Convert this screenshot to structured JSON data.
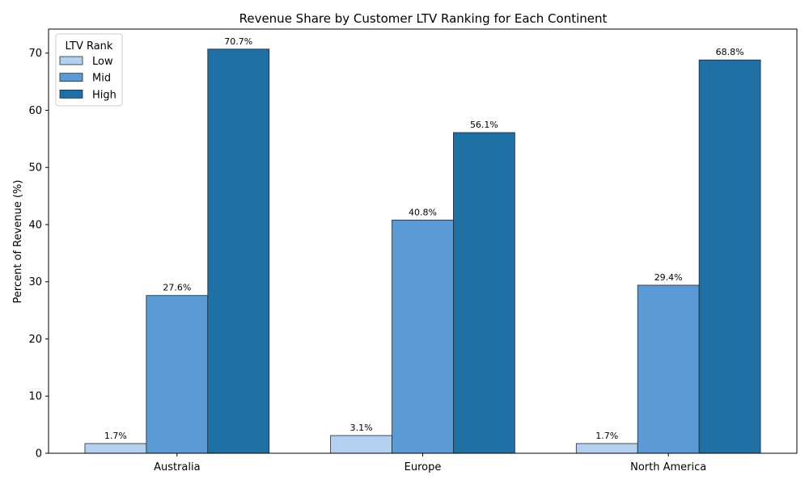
{
  "chart_data": {
    "type": "bar",
    "title": "Revenue Share by Customer LTV Ranking for Each Continent",
    "xlabel": "",
    "ylabel": "Percent of Revenue (%)",
    "categories": [
      "Australia",
      "Europe",
      "North America"
    ],
    "series": [
      {
        "name": "Low",
        "color": "#b3d0f0",
        "values": [
          1.7,
          3.1,
          1.7
        ],
        "labels": [
          "1.7%",
          "3.1%",
          "1.7%"
        ]
      },
      {
        "name": "Mid",
        "color": "#5a9ad5",
        "values": [
          27.6,
          40.8,
          29.4
        ],
        "labels": [
          "27.6%",
          "40.8%",
          "29.4%"
        ]
      },
      {
        "name": "High",
        "color": "#1f70a4",
        "values": [
          70.7,
          56.1,
          68.8
        ],
        "labels": [
          "70.7%",
          "56.1%",
          "68.8%"
        ]
      }
    ],
    "ylim": [
      0,
      74.2
    ],
    "yticks": [
      0,
      10,
      20,
      30,
      40,
      50,
      60,
      70
    ],
    "legend": {
      "title": "LTV Rank",
      "placement": "top-left"
    },
    "grid": false
  }
}
